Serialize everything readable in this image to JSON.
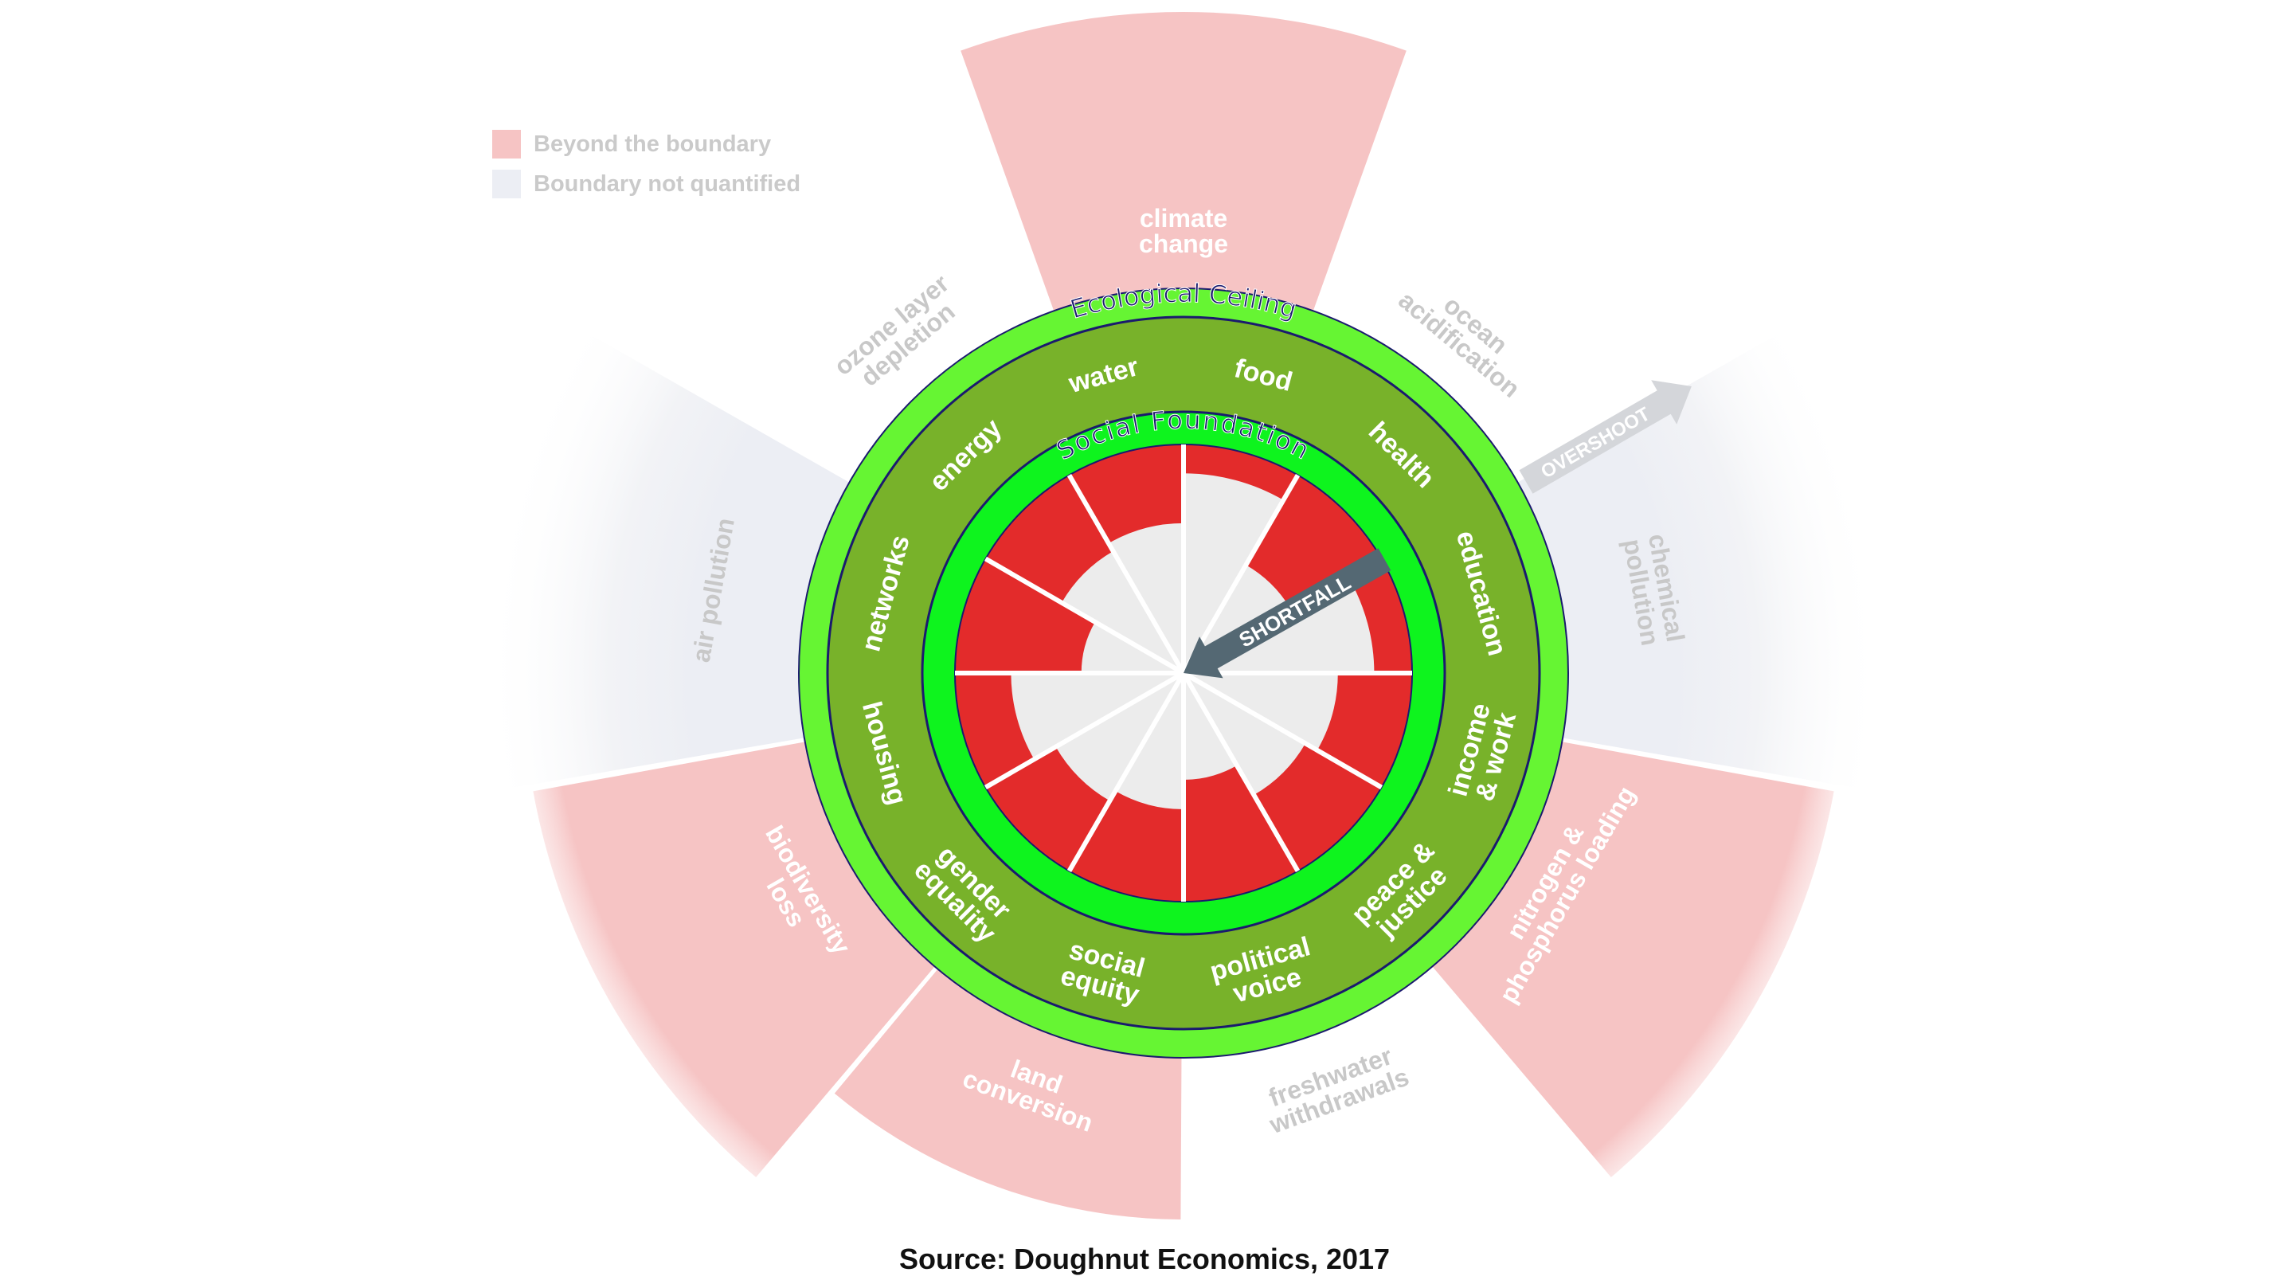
{
  "legend": [
    {
      "label": "Beyond the boundary",
      "color": "#f6c4c4"
    },
    {
      "label": "Boundary not quantified",
      "color": "#eceef4"
    }
  ],
  "rings": {
    "ecological_ceiling": "Ecological Ceiling",
    "social_foundation": "Social Foundation"
  },
  "ecological": [
    {
      "lines": [
        "climate",
        "change"
      ],
      "status": "beyond",
      "overshoot": 1.0
    },
    {
      "lines": [
        "ocean",
        "acidification"
      ],
      "status": "within"
    },
    {
      "lines": [
        "chemical",
        "pollution"
      ],
      "status": "not_quantified"
    },
    {
      "lines": [
        "nitrogen &",
        "phosphorus loading"
      ],
      "status": "beyond",
      "overshoot": 1.0
    },
    {
      "lines": [
        "freshwater",
        "withdrawals"
      ],
      "status": "within"
    },
    {
      "lines": [
        "land",
        "conversion"
      ],
      "status": "beyond",
      "overshoot": 0.6
    },
    {
      "lines": [
        "biodiversity",
        "loss"
      ],
      "status": "beyond",
      "overshoot": 1.0
    },
    {
      "lines": [
        "air pollution"
      ],
      "status": "not_quantified"
    },
    {
      "lines": [
        "ozone layer",
        "depletion"
      ],
      "status": "within"
    }
  ],
  "social": [
    {
      "lines": [
        "food"
      ],
      "achieved": 0.88
    },
    {
      "lines": [
        "health"
      ],
      "achieved": 0.55
    },
    {
      "lines": [
        "education"
      ],
      "achieved": 0.84
    },
    {
      "lines": [
        "income",
        "& work"
      ],
      "achieved": 0.68
    },
    {
      "lines": [
        "peace &",
        "justice"
      ],
      "achieved": 0.62
    },
    {
      "lines": [
        "political",
        "voice"
      ],
      "achieved": 0.47
    },
    {
      "lines": [
        "social",
        "equity"
      ],
      "achieved": 0.6
    },
    {
      "lines": [
        "gender",
        "equality"
      ],
      "achieved": 0.65
    },
    {
      "lines": [
        "housing"
      ],
      "achieved": 0.76
    },
    {
      "lines": [
        "networks"
      ],
      "achieved": 0.45
    },
    {
      "lines": [
        "energy"
      ],
      "achieved": 0.62
    },
    {
      "lines": [
        "water"
      ],
      "achieved": 0.66
    }
  ],
  "arrows": {
    "shortfall": "SHORTFALL",
    "overshoot": "OVERSHOOT"
  },
  "colors": {
    "beyond": "#f6c4c4",
    "not_quantified": "#eceef4",
    "shortfall": "#e32b2b",
    "achieved": "#ececec",
    "olive": "#78b22a",
    "bright_green": "#0ef41e",
    "light_green": "#66f533",
    "outline": "#1a1a6e",
    "arrow": "#546873"
  },
  "source": "Source: Doughnut Economics, 2017"
}
